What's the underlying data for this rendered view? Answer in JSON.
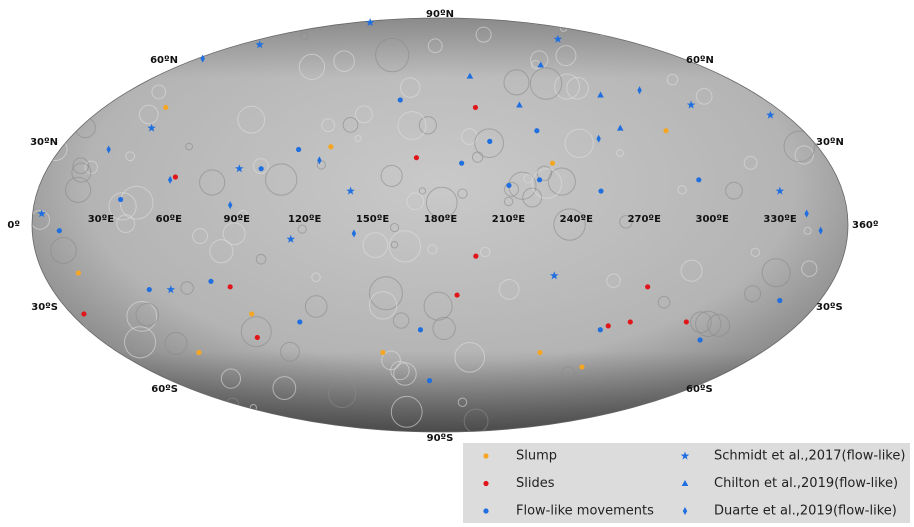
{
  "map": {
    "north_pole_label": "90ºN",
    "south_pole_label": "90ºS",
    "west_edge_label": "0º",
    "east_edge_label": "360º",
    "lon_labels": [
      "30ºE",
      "60ºE",
      "90ºE",
      "120ºE",
      "150ºE",
      "180ºE",
      "210ºE",
      "240ºE",
      "270ºE",
      "300ºE",
      "330ºE"
    ],
    "lat_labels": [
      "60ºN",
      "30ºN",
      "30ºS",
      "60ºS"
    ],
    "series": [
      {
        "name": "Slump",
        "color": "#f5a623",
        "marker": "circle",
        "points": [
          [
            33,
            43
          ],
          [
            128,
            28
          ],
          [
            232,
            22
          ],
          [
            292,
            34
          ],
          [
            16,
            -17
          ],
          [
            88,
            -32
          ],
          [
            45,
            -47
          ],
          [
            148,
            -47
          ],
          [
            236,
            -47
          ],
          [
            266,
            -53
          ]
        ]
      },
      {
        "name": "Slides",
        "color": "#e0161b",
        "marker": "circle",
        "points": [
          [
            199,
            43
          ],
          [
            60,
            17
          ],
          [
            169,
            24
          ],
          [
            83,
            -22
          ],
          [
            6,
            -32
          ],
          [
            84,
            -41
          ],
          [
            196,
            -11
          ],
          [
            188,
            -25
          ],
          [
            276,
            -22
          ],
          [
            275,
            -35
          ],
          [
            265,
            -36.5
          ],
          [
            303,
            -35
          ]
        ]
      },
      {
        "name": "Flow-like movements",
        "color": "#1f6fe0",
        "marker": "circle",
        "points": [
          [
            228,
            34
          ],
          [
            190,
            22
          ],
          [
            204,
            30
          ],
          [
            98,
            20
          ],
          [
            113,
            27
          ],
          [
            225,
            16
          ],
          [
            211,
            14
          ],
          [
            252,
            12
          ],
          [
            297,
            16
          ],
          [
            38,
            9
          ],
          [
            12,
            -2
          ],
          [
            158,
            46
          ],
          [
            110,
            -35
          ],
          [
            170,
            -38
          ],
          [
            173,
            -59
          ],
          [
            262,
            -38
          ],
          [
            318,
            -42
          ],
          [
            341,
            -27
          ],
          [
            45,
            -23
          ],
          [
            75,
            -20
          ]
        ]
      },
      {
        "name": "Schmidt et al.,2017(flow-like)",
        "color": "#1f6fe0",
        "marker": "star",
        "points": [
          [
            31,
            85
          ],
          [
            36,
            35
          ],
          [
            114,
            -5
          ],
          [
            232,
            -18
          ],
          [
            316,
            44
          ],
          [
            352,
            40
          ],
          [
            332,
            12
          ],
          [
            4,
            4
          ],
          [
            55,
            -23
          ],
          [
            140,
            12
          ],
          [
            88,
            20
          ],
          [
            298,
            74
          ],
          [
            18,
            71
          ]
        ]
      },
      {
        "name": "Chilton et al.,2019(flow-like)",
        "color": "#1f6fe0",
        "marker": "triangle",
        "points": [
          [
            250,
            61
          ],
          [
            223,
            44
          ],
          [
            271,
            48
          ],
          [
            270,
            35
          ],
          [
            199,
            56
          ]
        ]
      },
      {
        "name": "Duarte et al.,2019(flow-like)",
        "color": "#1f6fe0",
        "marker": "diamond",
        "points": [
          [
            124,
            23
          ],
          [
            58,
            16
          ],
          [
            257,
            31
          ],
          [
            296,
            50
          ],
          [
            4,
            64
          ],
          [
            23,
            27
          ],
          [
            142,
            -3
          ],
          [
            342,
            4
          ],
          [
            348,
            -2
          ],
          [
            87,
            7
          ]
        ]
      }
    ]
  }
}
